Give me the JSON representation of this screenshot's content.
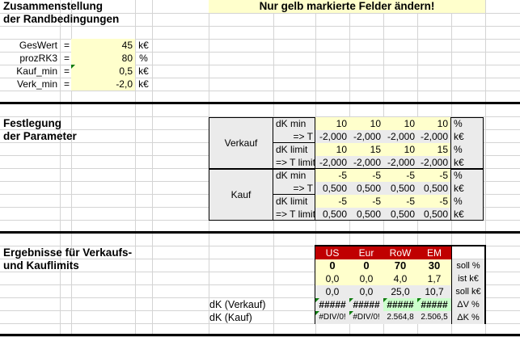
{
  "header": {
    "title_line1": "Zusammenstellung",
    "title_line2": "der Randbedingungen",
    "notice": "Nur gelb markierte Felder ändern!"
  },
  "inputs": [
    {
      "label": "GesWert",
      "eq": "=",
      "value": "45",
      "unit": "k€"
    },
    {
      "label": "prozRK3",
      "eq": "=",
      "value": "80",
      "unit": "%"
    },
    {
      "label": "Kauf_min",
      "eq": "=",
      "value": "0,5",
      "unit": "k€"
    },
    {
      "label": "Verk_min",
      "eq": "=",
      "value": "-2,0",
      "unit": "k€"
    }
  ],
  "parameters": {
    "title_line1": "Festlegung",
    "title_line2": "der Parameter",
    "groups": [
      {
        "name": "Verkauf",
        "rows": [
          {
            "label": "dK min",
            "values": [
              "10",
              "10",
              "10",
              "10"
            ],
            "unit": "%",
            "editable": true
          },
          {
            "label": "=> T",
            "values": [
              "-2,000",
              "-2,000",
              "-2,000",
              "-2,000"
            ],
            "unit": "k€",
            "editable": false
          },
          {
            "label": "dK limit",
            "values": [
              "10",
              "15",
              "10",
              "15"
            ],
            "unit": "%",
            "editable": true
          },
          {
            "label": "=> T limit",
            "values": [
              "-2,000",
              "-2,000",
              "-2,000",
              "-2,000"
            ],
            "unit": "k€",
            "editable": false
          }
        ]
      },
      {
        "name": "Kauf",
        "rows": [
          {
            "label": "dK min",
            "values": [
              "-5",
              "-5",
              "-5",
              "-5"
            ],
            "unit": "%",
            "editable": true
          },
          {
            "label": "=> T",
            "values": [
              "0,500",
              "0,500",
              "0,500",
              "0,500"
            ],
            "unit": "k€",
            "editable": false
          },
          {
            "label": "dK limit",
            "values": [
              "-5",
              "-5",
              "-5",
              "-5"
            ],
            "unit": "%",
            "editable": true
          },
          {
            "label": "=> T limit",
            "values": [
              "0,500",
              "0,500",
              "0,500",
              "0,500"
            ],
            "unit": "k€",
            "editable": false
          }
        ]
      }
    ]
  },
  "results": {
    "title_line1": "Ergebnisse für Verkaufs-",
    "title_line2": "und Kauflimits",
    "columns": [
      "US",
      "Eur",
      "RoW",
      "EM"
    ],
    "rows": [
      {
        "label": "",
        "values": [
          "0",
          "0",
          "70",
          "30"
        ],
        "unit": "soll %",
        "style": "bold-yellow"
      },
      {
        "label": "",
        "values": [
          "0,0",
          "0,0",
          "4,0",
          "1,7"
        ],
        "unit": "ist k€",
        "style": "yellow"
      },
      {
        "label": "",
        "values": [
          "0,0",
          "0,0",
          "25,0",
          "10,7"
        ],
        "unit": "soll k€",
        "style": "gray"
      },
      {
        "label": "dK (Verkauf)",
        "values": [
          "#####",
          "#####",
          "#####",
          "#####"
        ],
        "unit": "ΔV %",
        "style": "hash"
      },
      {
        "label": "dK (Kauf)",
        "values": [
          "#DIV/0!",
          "#DIV/0!",
          "2.564,8",
          "2.506,5"
        ],
        "unit": "ΔK %",
        "style": "small"
      }
    ]
  },
  "colors": {
    "input_yellow": "#ffffcc",
    "header_red": "#c00000",
    "result_green": "#ccffcc",
    "formula_gray": "#ebebeb"
  }
}
